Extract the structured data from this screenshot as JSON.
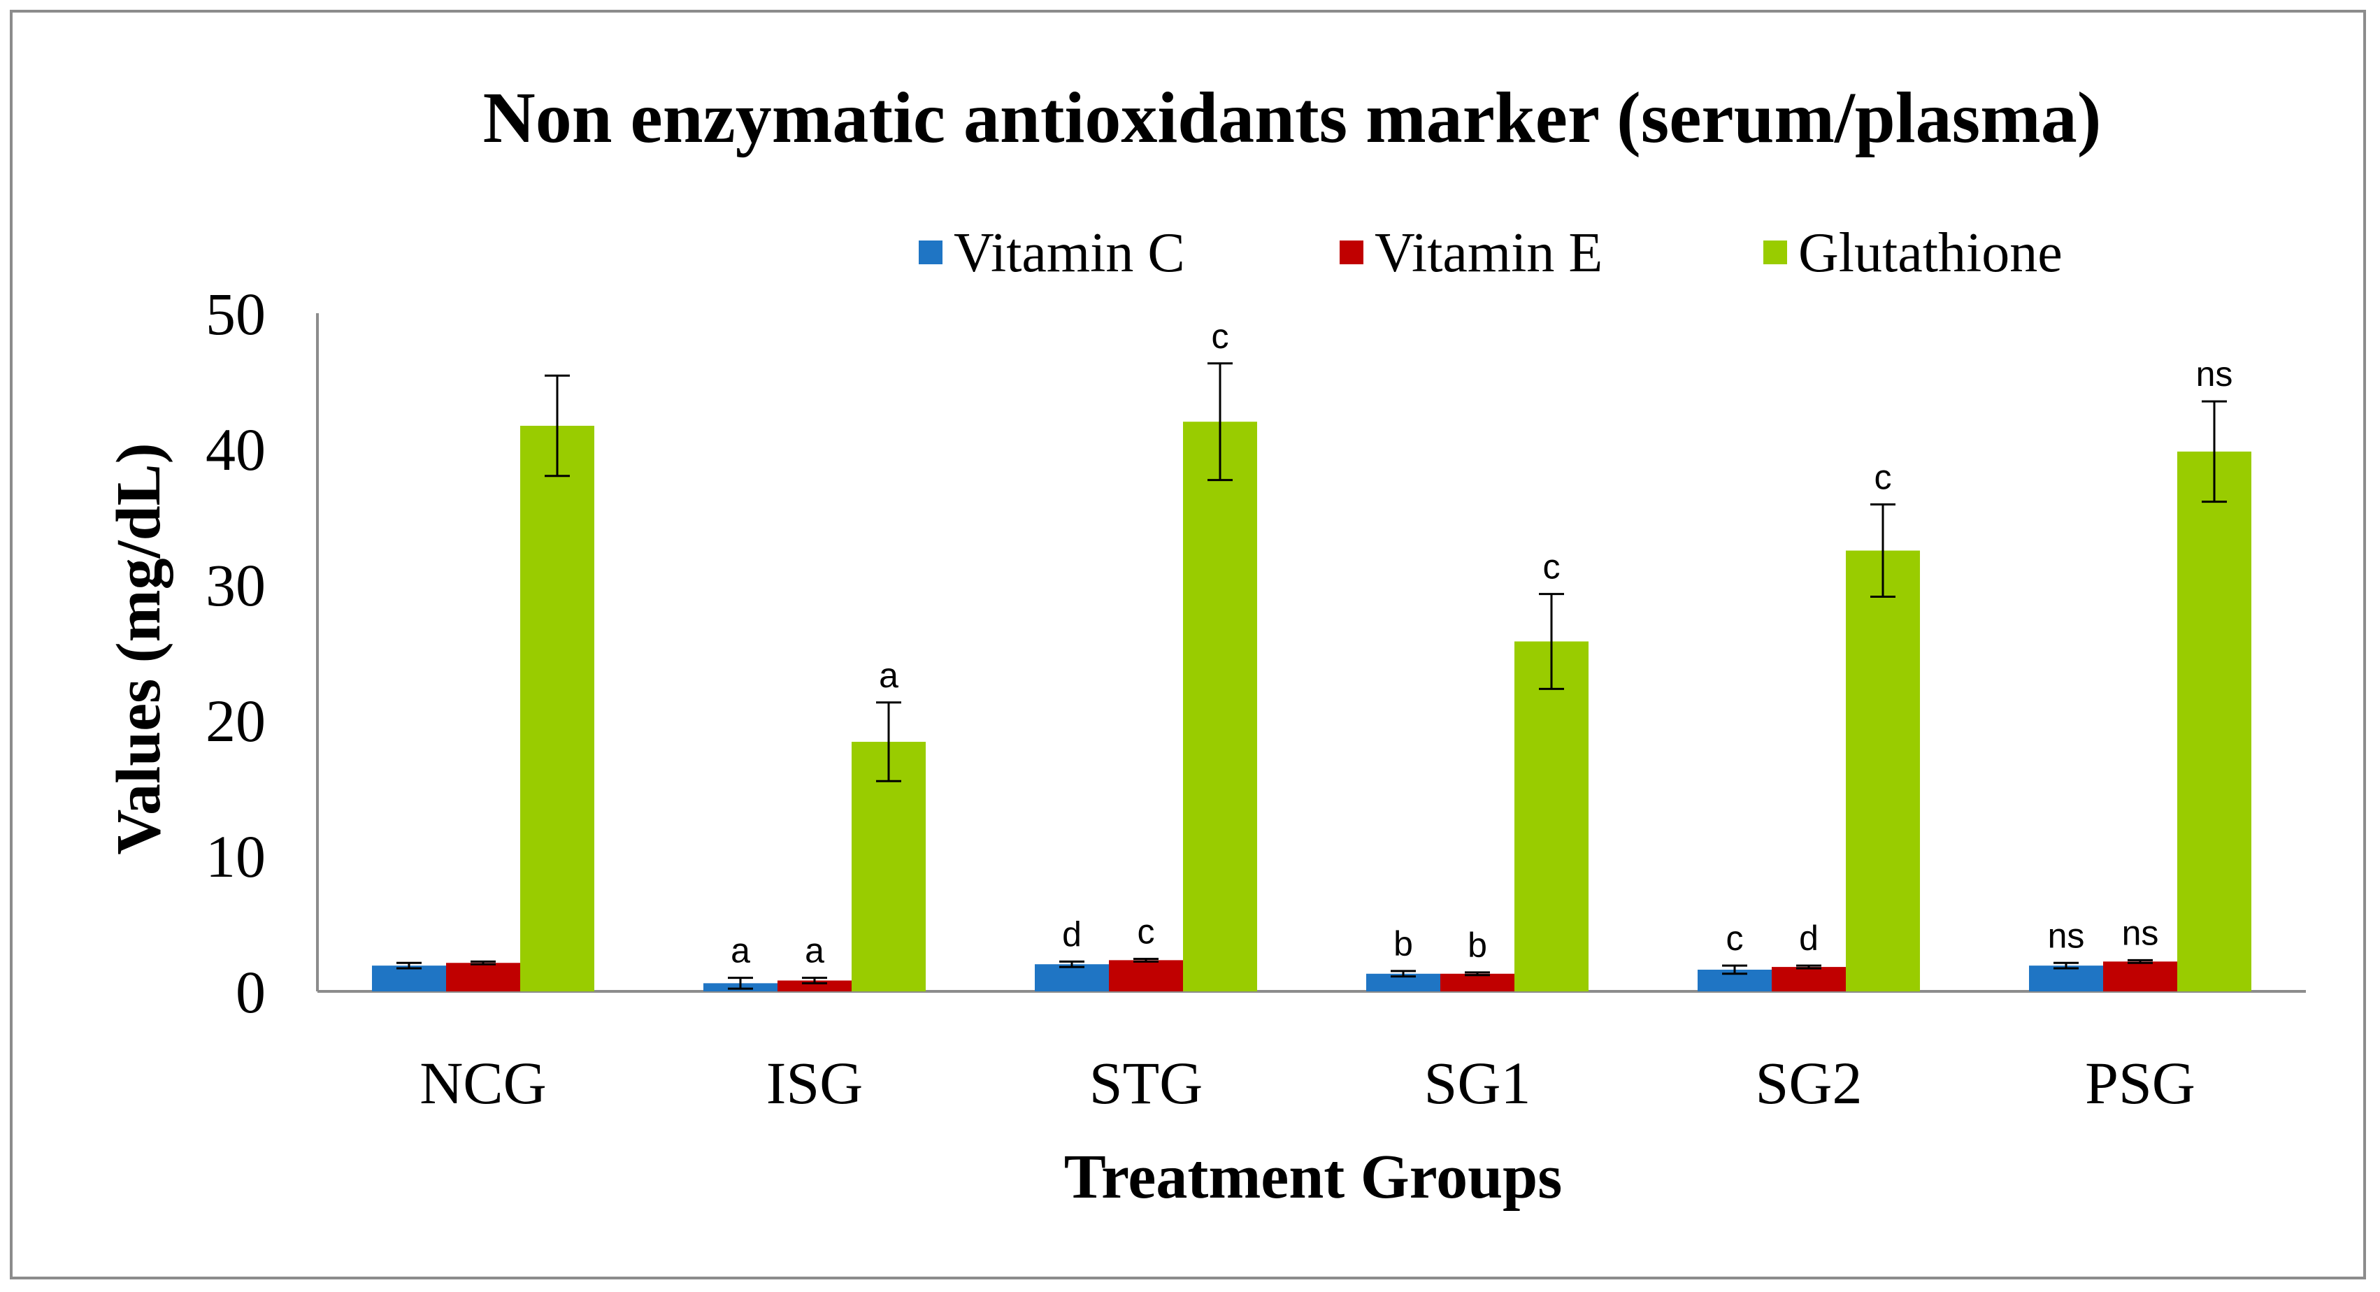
{
  "chart_data": {
    "type": "bar",
    "title": "Non enzymatic antioxidants marker (serum/plasma)",
    "xlabel": "Treatment Groups",
    "ylabel": "Values (mg/dL)",
    "ylim": [
      0,
      50
    ],
    "yticks": [
      0,
      10,
      20,
      30,
      40,
      50
    ],
    "grid": false,
    "legend_position": "top",
    "categories": [
      "NCG",
      "ISG",
      "STG",
      "SG1",
      "SG2",
      "PSG"
    ],
    "series": [
      {
        "name": "Vitamin C",
        "color": "#1F75C4",
        "values": [
          1.9,
          0.6,
          2.0,
          1.3,
          1.6,
          1.9
        ],
        "errors": [
          0.2,
          0.4,
          0.2,
          0.2,
          0.3,
          0.2
        ],
        "labels": [
          "",
          "a",
          "d",
          "b",
          "c",
          "ns"
        ]
      },
      {
        "name": "Vitamin E",
        "color": "#C00000",
        "values": [
          2.1,
          0.8,
          2.3,
          1.3,
          1.8,
          2.2
        ],
        "errors": [
          0.1,
          0.2,
          0.1,
          0.1,
          0.1,
          0.1
        ],
        "labels": [
          "",
          "a",
          "c",
          "b",
          "d",
          "ns"
        ]
      },
      {
        "name": "Glutathione",
        "color": "#99CC00",
        "values": [
          41.7,
          18.4,
          42.0,
          25.8,
          32.5,
          39.8
        ],
        "errors": [
          3.7,
          2.9,
          4.3,
          3.5,
          3.4,
          3.7
        ],
        "labels": [
          "",
          "a",
          "c",
          "c",
          "c",
          "ns"
        ]
      }
    ]
  }
}
